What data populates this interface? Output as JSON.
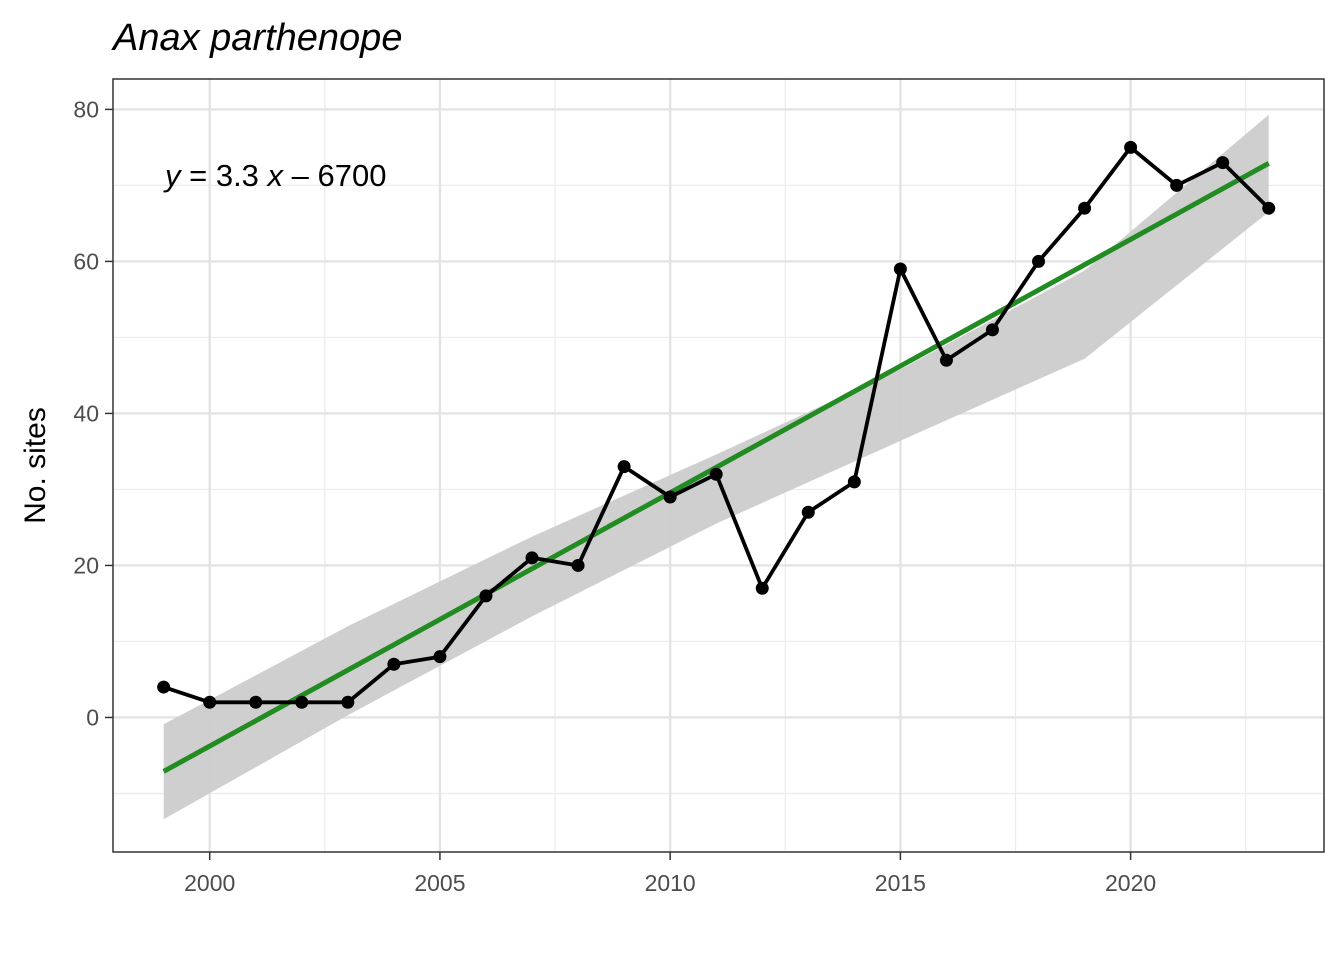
{
  "chart_data": {
    "type": "line",
    "title": "Anax parthenope",
    "xlabel": "",
    "ylabel": "No. sites",
    "xlim": [
      1997.9,
      2024.2
    ],
    "ylim": [
      -17.7,
      84
    ],
    "x_ticks": [
      2000,
      2005,
      2010,
      2015,
      2020
    ],
    "y_ticks": [
      0,
      20,
      40,
      60,
      80
    ],
    "grid": true,
    "legend": "none",
    "annotation": {
      "var_y": "y",
      "rhs_a": " = 3.3 ",
      "var_x": "x",
      "rhs_b": " – 6700"
    },
    "series": [
      {
        "x": [
          1999,
          2000,
          2001,
          2002,
          2003,
          2004,
          2005,
          2006,
          2007,
          2008,
          2009,
          2010,
          2011,
          2012,
          2013,
          2014,
          2015,
          2016,
          2017,
          2018,
          2019,
          2020,
          2021,
          2022,
          2023
        ],
        "values": [
          4,
          2,
          2,
          2,
          2,
          7,
          8,
          16,
          21,
          20,
          33,
          29,
          32,
          17,
          27,
          31,
          59,
          47,
          51,
          60,
          67,
          75,
          70,
          73,
          67
        ],
        "color": "#000000"
      }
    ],
    "trend": {
      "x": [
        1999,
        2023
      ],
      "y": [
        -7.1,
        72.9
      ],
      "color": "#228b22",
      "ci_x": [
        1999,
        2003,
        2007,
        2011,
        2015,
        2019,
        2023
      ],
      "ci_lower": [
        -13.4,
        0.3,
        13.3,
        25.5,
        36.4,
        47.2,
        66.5
      ],
      "ci_upper": [
        -0.9,
        12.0,
        23.8,
        34.6,
        45.8,
        58.8,
        79.3
      ],
      "ci_color": "#cccccc"
    }
  }
}
